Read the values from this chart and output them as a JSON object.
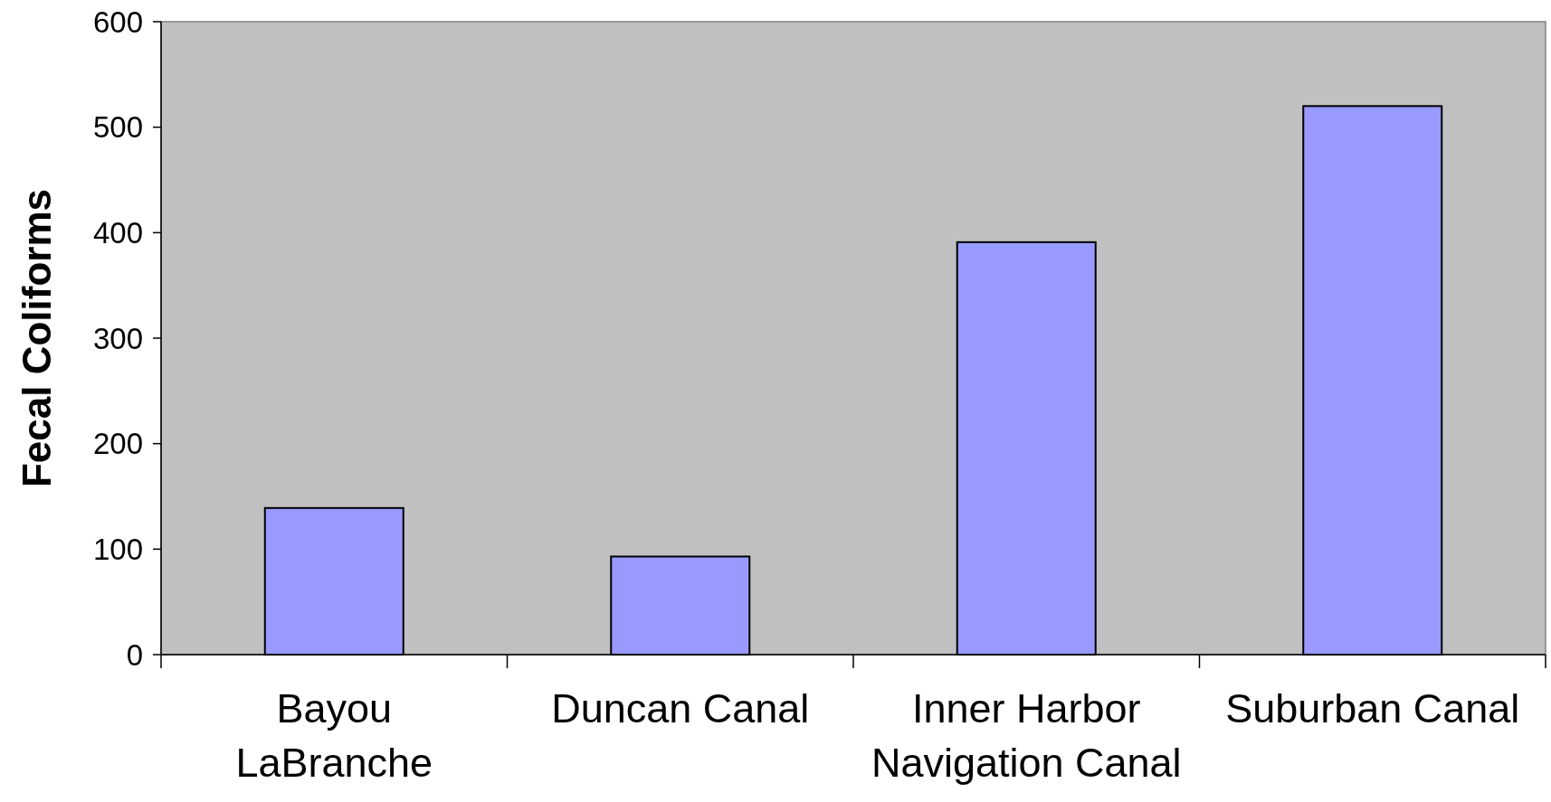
{
  "chart_data": {
    "type": "bar",
    "ylabel": "Fecal Coliforms",
    "categories": [
      "Bayou LaBranche",
      "Duncan Canal",
      "Inner Harbor Navigation Canal",
      "Suburban Canal"
    ],
    "values": [
      139,
      93,
      391,
      520
    ],
    "color": "#9999ff",
    "ylim": [
      0,
      600
    ],
    "yticks": [
      0,
      100,
      200,
      300,
      400,
      500,
      600
    ],
    "grid": false
  }
}
